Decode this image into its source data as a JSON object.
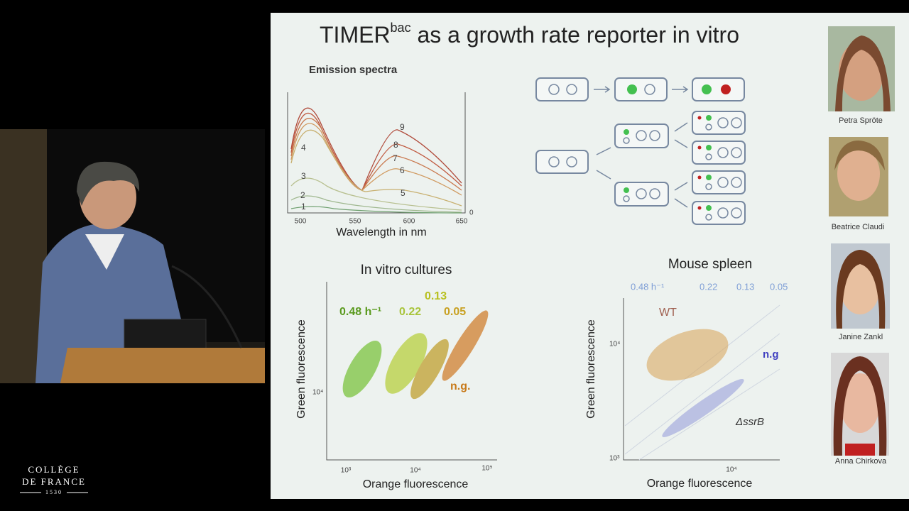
{
  "logo": {
    "line1": "COLLÈGE",
    "line2": "DE FRANCE",
    "year": "1530"
  },
  "slide": {
    "title_main": "TIMER",
    "title_sup": "bac",
    "title_rest": " as a growth rate reporter in vitro",
    "spectra": {
      "title": "Emission spectra",
      "xlabel": "Wavelength in nm",
      "xticks": [
        "500",
        "550",
        "600",
        "650"
      ],
      "zero": "0",
      "curve_labels": [
        "9",
        "8",
        "7",
        "6",
        "5",
        "4",
        "3",
        "2",
        "1"
      ]
    },
    "cultures": {
      "title": "In vitro cultures",
      "ylabel": "Green fluorescence",
      "xlabel": "Orange fluorescence",
      "rates": [
        "0.48 h⁻¹",
        "0.22",
        "0.13",
        "0.05"
      ],
      "ng": "n.g.",
      "yticks": [
        "10⁴"
      ],
      "xticks": [
        "10³",
        "10⁴",
        "10⁵"
      ]
    },
    "spleen": {
      "title": "Mouse spleen",
      "ylabel": "Green fluorescence",
      "xlabel": "Orange fluorescence",
      "rates": [
        "0.48 h⁻¹",
        "0.22",
        "0.13",
        "0.05"
      ],
      "wt": "WT",
      "ng": "n.g",
      "mutant": "ΔssrB",
      "yticks": [
        "10⁴",
        "10³"
      ],
      "xticks": [
        "10⁴"
      ]
    },
    "people": [
      "Petra Spröte",
      "Beatrice Claudi",
      "Janine Zankl",
      "Anna Chirkova"
    ]
  }
}
